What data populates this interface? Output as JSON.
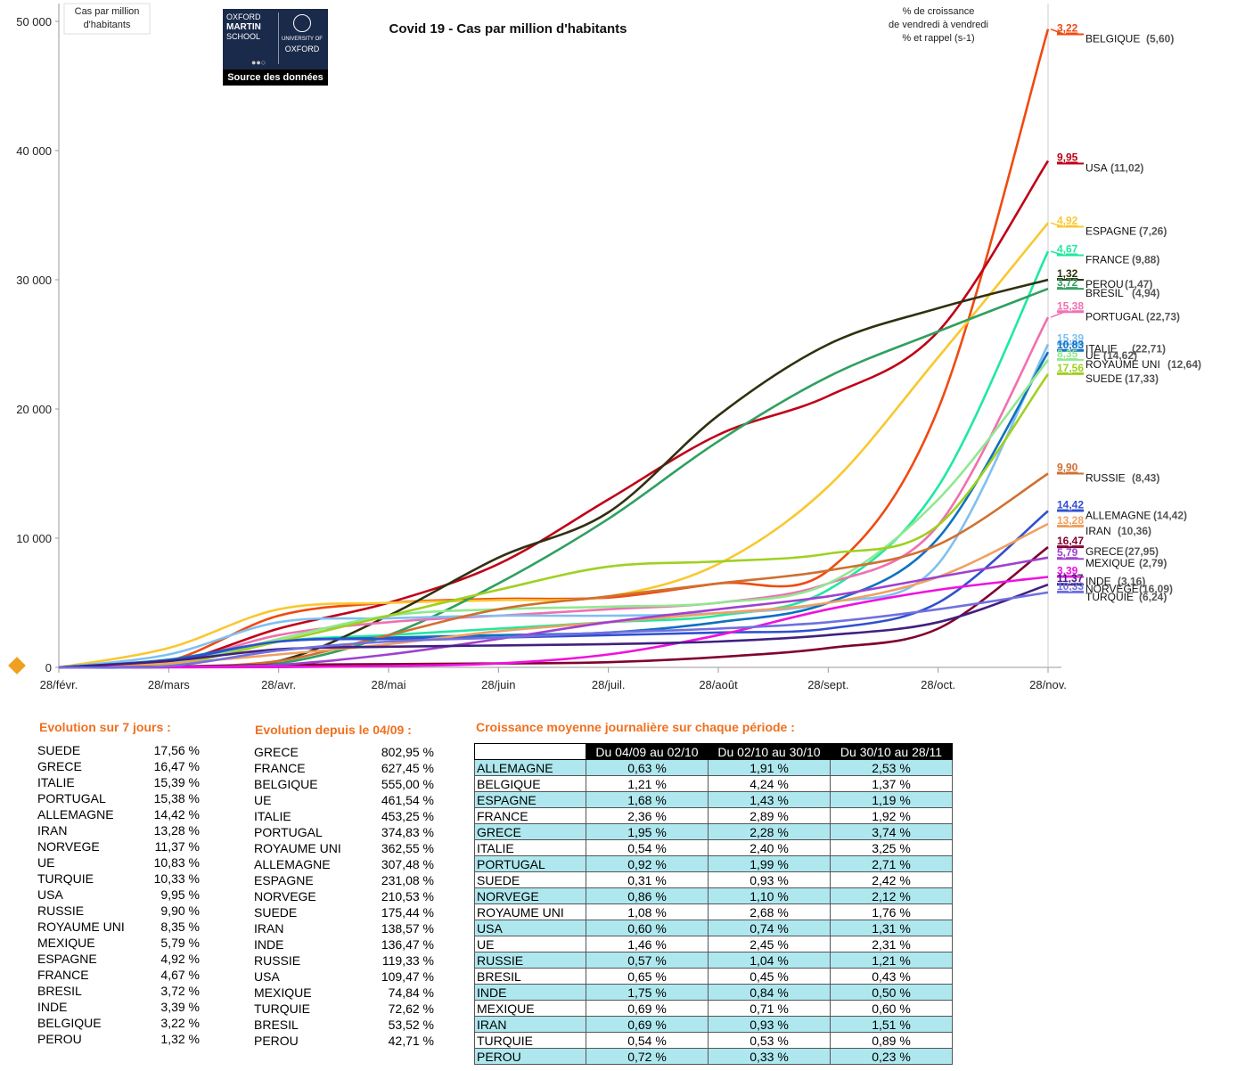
{
  "chart_data": {
    "type": "line",
    "title": "Covid 19 - Cas par million d'habitants",
    "ylabel": "Cas par million d'habitants",
    "note": [
      "% de croissance",
      "de vendredi à vendredi",
      "% et rappel (s-1)"
    ],
    "ylim": [
      0,
      50000
    ],
    "yticks": [
      "0",
      "10 000",
      "20 000",
      "30 000",
      "40 000",
      "50 000"
    ],
    "xticks": [
      "28/févr.",
      "28/mars",
      "28/avr.",
      "28/mai",
      "28/juin",
      "28/juil.",
      "28/août",
      "28/sept.",
      "28/oct.",
      "28/nov."
    ],
    "grid": false,
    "series": [
      {
        "name": "BELGIQUE",
        "value_label": "3,22",
        "prev_label": "(5,60)",
        "color": "#f04a10",
        "values": [
          0,
          500,
          4000,
          5000,
          5300,
          5400,
          6500,
          7500,
          20000,
          49400
        ],
        "label_y": 49000
      },
      {
        "name": "USA",
        "value_label": "9,95",
        "prev_label": "(11,02)",
        "color": "#c00018",
        "values": [
          0,
          300,
          3000,
          5000,
          8000,
          13000,
          18000,
          21000,
          26000,
          39200
        ],
        "label_y": 39000
      },
      {
        "name": "ESPAGNE",
        "value_label": "4,92",
        "prev_label": "(7,26)",
        "color": "#f8c830",
        "values": [
          0,
          1500,
          4500,
          5000,
          5200,
          5500,
          8000,
          14000,
          24000,
          34400
        ],
        "label_y": 34100
      },
      {
        "name": "FRANCE",
        "value_label": "4,67",
        "prev_label": "(9,88)",
        "color": "#20e8a0",
        "values": [
          0,
          300,
          2000,
          2500,
          3000,
          3500,
          4000,
          6000,
          14000,
          32200
        ],
        "label_y": 31900
      },
      {
        "name": "PEROU",
        "value_label": "1,32",
        "prev_label": "(1,47)",
        "color": "#303010",
        "values": [
          0,
          50,
          500,
          4000,
          8500,
          12000,
          19500,
          25000,
          27800,
          30000
        ],
        "label_y": 30000
      },
      {
        "name": "BRESIL",
        "value_label": "3,72",
        "prev_label": "(4,94)",
        "color": "#30a060",
        "values": [
          0,
          20,
          300,
          2500,
          6500,
          11500,
          17500,
          22500,
          26000,
          29300
        ],
        "label_y": 29300
      },
      {
        "name": "PORTUGAL",
        "value_label": "15,38",
        "prev_label": "(22,73)",
        "color": "#f070b0",
        "values": [
          0,
          300,
          2500,
          3500,
          4000,
          4500,
          5000,
          6500,
          11000,
          27100
        ],
        "label_y": 27500
      },
      {
        "name": "ITALIE",
        "value_label": "15,39",
        "prev_label": "(22,71)",
        "color": "#80c0f0",
        "values": [
          0,
          1000,
          3500,
          3800,
          4000,
          4000,
          4200,
          5000,
          8000,
          25000
        ],
        "label_y": 25000
      },
      {
        "name": "UE",
        "value_label": "10,83",
        "prev_label": "(14,62)",
        "color": "#1070c0",
        "values": [
          0,
          600,
          2000,
          2300,
          2500,
          2700,
          3500,
          5000,
          10000,
          24400
        ],
        "label_y": 24500
      },
      {
        "name": "ROYAUME UNI",
        "value_label": "8,35",
        "prev_label": "(12,64)",
        "color": "#90e890",
        "values": [
          0,
          300,
          2200,
          4000,
          4500,
          4700,
          5000,
          6500,
          13000,
          23800
        ],
        "label_y": 23800
      },
      {
        "name": "SUEDE",
        "value_label": "17,56",
        "prev_label": "(17,33)",
        "color": "#a0d020",
        "values": [
          0,
          200,
          2000,
          4000,
          6000,
          7800,
          8200,
          8800,
          11000,
          22700
        ],
        "label_y": 22700
      },
      {
        "name": "RUSSIE",
        "value_label": "9,90",
        "prev_label": "(8,43)",
        "color": "#d07030",
        "values": [
          0,
          50,
          500,
          2500,
          4500,
          5500,
          6500,
          7500,
          9500,
          15000
        ],
        "label_y": 15000
      },
      {
        "name": "ALLEMAGNE",
        "value_label": "14,42",
        "prev_label": "(14,42)",
        "color": "#3050d0",
        "values": [
          0,
          500,
          2000,
          2200,
          2300,
          2500,
          2700,
          3000,
          5000,
          12100
        ],
        "label_y": 12100
      },
      {
        "name": "IRAN",
        "value_label": "13,28",
        "prev_label": "(10,36)",
        "color": "#f0a060",
        "values": [
          0,
          300,
          1000,
          1800,
          2800,
          3500,
          4200,
          5000,
          7000,
          11100
        ],
        "label_y": 10900
      },
      {
        "name": "GRECE",
        "value_label": "16,47",
        "prev_label": "(27,95)",
        "color": "#800030",
        "values": [
          0,
          50,
          200,
          250,
          300,
          400,
          800,
          1500,
          3000,
          9300
        ],
        "label_y": 9300
      },
      {
        "name": "MEXIQUE",
        "value_label": "5,79",
        "prev_label": "(2,79)",
        "color": "#a040d0",
        "values": [
          0,
          20,
          200,
          1000,
          2200,
          3500,
          4500,
          5500,
          7000,
          8500
        ],
        "label_y": 8400
      },
      {
        "name": "INDE",
        "value_label": "3,39",
        "prev_label": "(3,16)",
        "color": "#f010e0",
        "values": [
          0,
          5,
          20,
          100,
          300,
          1000,
          2500,
          4500,
          6000,
          7000
        ],
        "label_y": 7000
      },
      {
        "name": "NORVEGE",
        "value_label": "11,37",
        "prev_label": "(16,09)",
        "color": "#402080",
        "values": [
          0,
          500,
          1400,
          1600,
          1700,
          1800,
          2000,
          2500,
          3500,
          6400
        ],
        "label_y": 6400
      },
      {
        "name": "TURQUIE",
        "value_label": "10,33",
        "prev_label": "(6,24)",
        "color": "#7070e0",
        "values": [
          0,
          100,
          1300,
          2000,
          2300,
          2700,
          3000,
          3500,
          4500,
          5800
        ],
        "label_y": 5800
      }
    ]
  },
  "logo": {
    "left_lines": [
      "OXFORD",
      "MARTIN",
      "SCHOOL"
    ],
    "right_lines": [
      "UNIVERSITY OF",
      "OXFORD"
    ],
    "footer": "Source des données"
  },
  "panel7": {
    "title": "Evolution sur 7 jours :",
    "rows": [
      [
        "SUEDE",
        "17,56 %"
      ],
      [
        "GRECE",
        "16,47 %"
      ],
      [
        "ITALIE",
        "15,39 %"
      ],
      [
        "PORTUGAL",
        "15,38 %"
      ],
      [
        "ALLEMAGNE",
        "14,42 %"
      ],
      [
        "IRAN",
        "13,28 %"
      ],
      [
        "NORVEGE",
        "11,37 %"
      ],
      [
        "UE",
        "10,83 %"
      ],
      [
        "TURQUIE",
        "10,33 %"
      ],
      [
        "USA",
        "9,95 %"
      ],
      [
        "RUSSIE",
        "9,90 %"
      ],
      [
        "ROYAUME UNI",
        "8,35 %"
      ],
      [
        "MEXIQUE",
        "5,79 %"
      ],
      [
        "ESPAGNE",
        "4,92 %"
      ],
      [
        "FRANCE",
        "4,67 %"
      ],
      [
        "BRESIL",
        "3,72 %"
      ],
      [
        "INDE",
        "3,39 %"
      ],
      [
        "BELGIQUE",
        "3,22 %"
      ],
      [
        "PEROU",
        "1,32 %"
      ]
    ]
  },
  "panelSince": {
    "title": "Evolution depuis le 04/09 :",
    "rows": [
      [
        "GRECE",
        "802,95 %"
      ],
      [
        "FRANCE",
        "627,45 %"
      ],
      [
        "BELGIQUE",
        "555,00 %"
      ],
      [
        "UE",
        "461,54 %"
      ],
      [
        "ITALIE",
        "453,25 %"
      ],
      [
        "PORTUGAL",
        "374,83 %"
      ],
      [
        "ROYAUME UNI",
        "362,55 %"
      ],
      [
        "ALLEMAGNE",
        "307,48 %"
      ],
      [
        "ESPAGNE",
        "231,08 %"
      ],
      [
        "NORVEGE",
        "210,53 %"
      ],
      [
        "SUEDE",
        "175,44 %"
      ],
      [
        "IRAN",
        "138,57 %"
      ],
      [
        "INDE",
        "136,47 %"
      ],
      [
        "RUSSIE",
        "119,33 %"
      ],
      [
        "USA",
        "109,47 %"
      ],
      [
        "MEXIQUE",
        "74,84 %"
      ],
      [
        "TURQUIE",
        "72,62 %"
      ],
      [
        "BRESIL",
        "53,52 %"
      ],
      [
        "PEROU",
        "42,71 %"
      ]
    ]
  },
  "growth": {
    "title": "Croissance moyenne journalière sur chaque période :",
    "headers": [
      "",
      "Du 04/09 au 02/10",
      "Du 02/10 au 30/10",
      "Du 30/10 au 28/11"
    ],
    "rows": [
      [
        "ALLEMAGNE",
        "0,63 %",
        "1,91 %",
        "2,53 %"
      ],
      [
        "BELGIQUE",
        "1,21 %",
        "4,24 %",
        "1,37 %"
      ],
      [
        "ESPAGNE",
        "1,68 %",
        "1,43 %",
        "1,19 %"
      ],
      [
        "FRANCE",
        "2,36 %",
        "2,89 %",
        "1,92 %"
      ],
      [
        "GRECE",
        "1,95 %",
        "2,28 %",
        "3,74 %"
      ],
      [
        "ITALIE",
        "0,54 %",
        "2,40 %",
        "3,25 %"
      ],
      [
        "PORTUGAL",
        "0,92 %",
        "1,99 %",
        "2,71 %"
      ],
      [
        "SUEDE",
        "0,31 %",
        "0,93 %",
        "2,42 %"
      ],
      [
        "NORVEGE",
        "0,86 %",
        "1,10 %",
        "2,12 %"
      ],
      [
        "ROYAUME UNI",
        "1,08 %",
        "2,68 %",
        "1,76 %"
      ],
      [
        "USA",
        "0,60 %",
        "0,74 %",
        "1,31 %"
      ],
      [
        "UE",
        "1,46 %",
        "2,45 %",
        "2,31 %"
      ],
      [
        "RUSSIE",
        "0,57 %",
        "1,04 %",
        "1,21 %"
      ],
      [
        "BRESIL",
        "0,65 %",
        "0,45 %",
        "0,43 %"
      ],
      [
        "INDE",
        "1,75 %",
        "0,84 %",
        "0,50 %"
      ],
      [
        "MEXIQUE",
        "0,69 %",
        "0,71 %",
        "0,60 %"
      ],
      [
        "IRAN",
        "0,69 %",
        "0,93 %",
        "1,51 %"
      ],
      [
        "TURQUIE",
        "0,54 %",
        "0,53 %",
        "0,89 %"
      ],
      [
        "PEROU",
        "0,72 %",
        "0,33 %",
        "0,23 %"
      ]
    ]
  }
}
